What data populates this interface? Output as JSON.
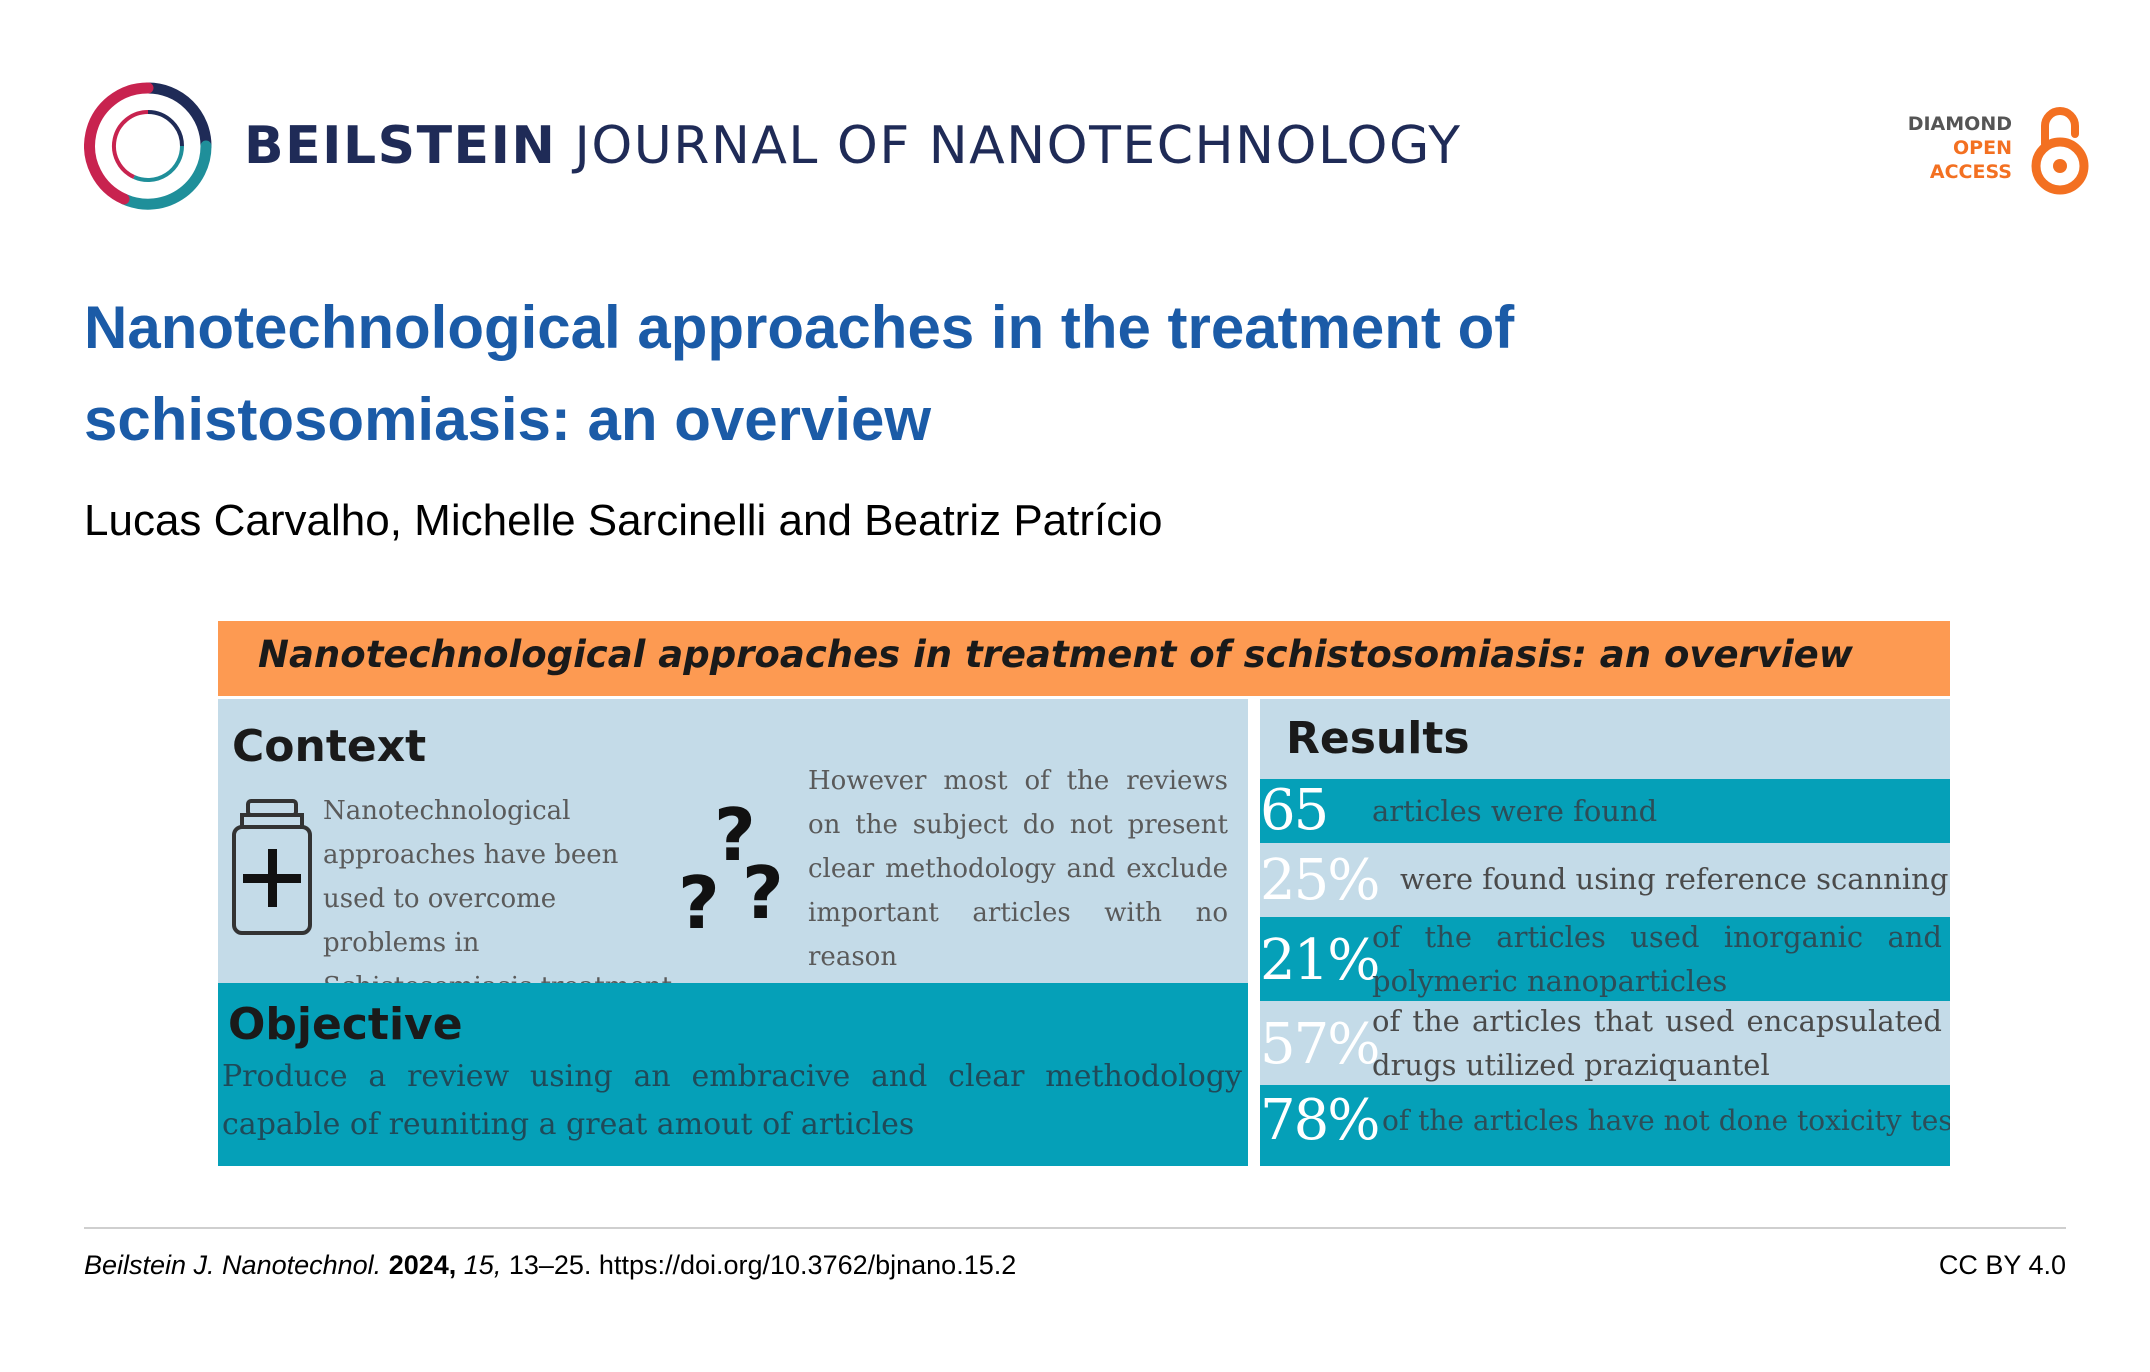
{
  "header": {
    "journal_strong": "BEILSTEIN",
    "journal_rest": "JOURNAL OF NANOTECHNOLOGY",
    "access_line1": "DIAMOND",
    "access_line2": "OPEN",
    "access_line3": "ACCESS"
  },
  "article": {
    "title_line1": "Nanotechnological approaches in the treatment of",
    "title_line2": "schistosomiasis: an overview",
    "authors": "Lucas Carvalho, Michelle Sarcinelli and Beatriz Patrício"
  },
  "graphical_abstract": {
    "banner": "Nanotechnological approaches in treatment of schistosomiasis: an overview",
    "context_heading": "Context",
    "context_text": "Nanotechnological approaches have been used to overcome problems in Schistosomiasis treatment",
    "context_right": "However most of the reviews on the subject do not present clear methodology and exclude important articles with no reason",
    "question_mark": "?",
    "objective_heading": "Objective",
    "objective_text": "Produce a review using an embracive and clear methodology capable of reuniting a great amout of articles",
    "results_heading": "Results",
    "results": [
      {
        "value": "65",
        "text": "articles were found"
      },
      {
        "value": "25%",
        "text": "were found using reference scanning"
      },
      {
        "value": "21%",
        "text": "of the articles used inorganic and polymeric nanoparticles"
      },
      {
        "value": "57%",
        "text": "of the articles that used encapsulated drugs utilized praziquantel"
      },
      {
        "value": "78%",
        "text": "of the articles have not done toxicity tests"
      }
    ]
  },
  "footer": {
    "journal_abbrev": "Beilstein J. Nanotechnol.",
    "year": "2024,",
    "volume": "15,",
    "pages_doi": "13–25. https://doi.org/10.3762/bjnano.15.2",
    "license": "CC BY 4.0"
  },
  "colors": {
    "title_blue": "#1b5ba7",
    "journal_navy": "#1f2b57",
    "banner_orange": "#fd9a52",
    "teal": "#05a0b8",
    "light_blue": "#c4dbe8",
    "open_access_orange": "#f37021"
  }
}
